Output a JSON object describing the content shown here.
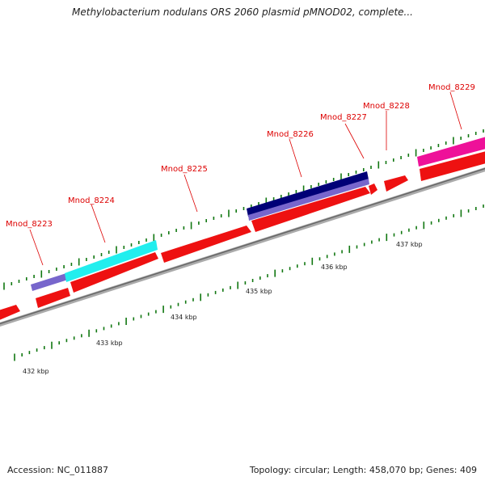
{
  "title": "Methylobacterium nodulans ORS 2060 plasmid pMNOD02, complete...",
  "footer": {
    "accession": "Accession: NC_011887",
    "stats": "Topology: circular; Length: 458,070 bp; Genes: 409"
  },
  "colors": {
    "forward_gene": "#ee1111",
    "track_lavender": "#7766cc",
    "track_cyan": "#22eeee",
    "track_navy": "#000077",
    "track_magenta": "#ee1199",
    "tick": "#117711",
    "backbone": "#888888"
  },
  "genes": [
    {
      "name": "Mnod_8223"
    },
    {
      "name": "Mnod_8224"
    },
    {
      "name": "Mnod_8225"
    },
    {
      "name": "Mnod_8226"
    },
    {
      "name": "Mnod_8227"
    },
    {
      "name": "Mnod_8228"
    },
    {
      "name": "Mnod_8229"
    }
  ],
  "scale_labels": [
    "432 kbp",
    "433 kbp",
    "434 kbp",
    "435 kbp",
    "436 kbp",
    "437 kbp"
  ]
}
